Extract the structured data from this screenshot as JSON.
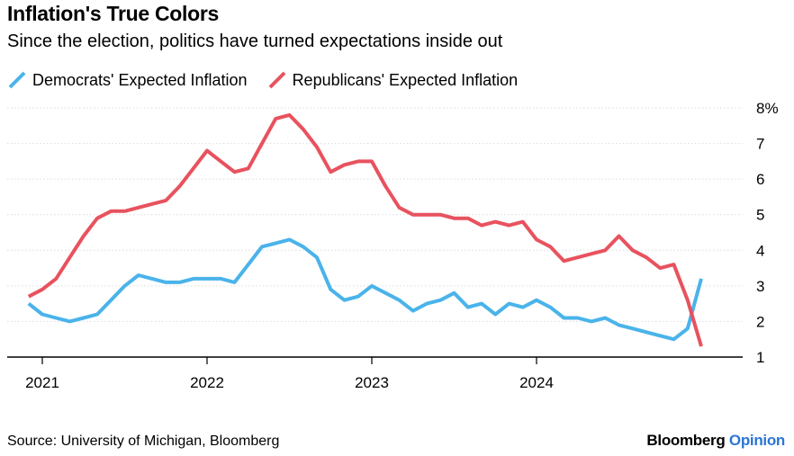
{
  "title": "Inflation's True Colors",
  "subtitle": "Since the election, politics have turned expectations inside out",
  "source": "Source: University of Michigan, Bloomberg",
  "brand": {
    "name": "Bloomberg",
    "suffix": "Opinion"
  },
  "colors": {
    "democrats": "#4ab3ea",
    "republicans": "#e8525e",
    "brand_accent": "#2b75d6"
  },
  "chart_data": {
    "type": "line",
    "title": "Inflation's True Colors",
    "subtitle": "Since the election, politics have turned expectations inside out",
    "xlabel": "",
    "ylabel": "",
    "x_ticks": [
      "2021",
      "2022",
      "2023",
      "2024"
    ],
    "y_ticks": [
      "1",
      "2",
      "3",
      "4",
      "5",
      "6",
      "7",
      "8%"
    ],
    "ylim": [
      1,
      8
    ],
    "grid": "horizontal",
    "legend_position": "top-left",
    "x_start": "2020-12",
    "x_end": "2025-01",
    "series": [
      {
        "name": "Democrats' Expected Inflation",
        "color": "#4ab3ea",
        "points": [
          [
            "2020-12",
            2.5
          ],
          [
            "2021-01",
            2.2
          ],
          [
            "2021-02",
            2.1
          ],
          [
            "2021-03",
            2.0
          ],
          [
            "2021-04",
            2.1
          ],
          [
            "2021-05",
            2.2
          ],
          [
            "2021-06",
            2.6
          ],
          [
            "2021-07",
            3.0
          ],
          [
            "2021-08",
            3.3
          ],
          [
            "2021-09",
            3.2
          ],
          [
            "2021-10",
            3.1
          ],
          [
            "2021-11",
            3.1
          ],
          [
            "2021-12",
            3.2
          ],
          [
            "2022-01",
            3.2
          ],
          [
            "2022-02",
            3.2
          ],
          [
            "2022-03",
            3.1
          ],
          [
            "2022-04",
            3.6
          ],
          [
            "2022-05",
            4.1
          ],
          [
            "2022-06",
            4.2
          ],
          [
            "2022-07",
            4.3
          ],
          [
            "2022-08",
            4.1
          ],
          [
            "2022-09",
            3.8
          ],
          [
            "2022-10",
            2.9
          ],
          [
            "2022-11",
            2.6
          ],
          [
            "2022-12",
            2.7
          ],
          [
            "2023-01",
            3.0
          ],
          [
            "2023-02",
            2.8
          ],
          [
            "2023-03",
            2.6
          ],
          [
            "2023-04",
            2.3
          ],
          [
            "2023-05",
            2.5
          ],
          [
            "2023-06",
            2.6
          ],
          [
            "2023-07",
            2.8
          ],
          [
            "2023-08",
            2.4
          ],
          [
            "2023-09",
            2.5
          ],
          [
            "2023-10",
            2.2
          ],
          [
            "2023-11",
            2.5
          ],
          [
            "2023-12",
            2.4
          ],
          [
            "2024-01",
            2.6
          ],
          [
            "2024-02",
            2.4
          ],
          [
            "2024-03",
            2.1
          ],
          [
            "2024-04",
            2.1
          ],
          [
            "2024-05",
            2.0
          ],
          [
            "2024-06",
            2.1
          ],
          [
            "2024-07",
            1.9
          ],
          [
            "2024-08",
            1.8
          ],
          [
            "2024-09",
            1.7
          ],
          [
            "2024-10",
            1.6
          ],
          [
            "2024-11",
            1.5
          ],
          [
            "2024-12",
            1.8
          ],
          [
            "2025-01",
            3.2
          ]
        ]
      },
      {
        "name": "Republicans' Expected Inflation",
        "color": "#e8525e",
        "points": [
          [
            "2020-12",
            2.7
          ],
          [
            "2021-01",
            2.9
          ],
          [
            "2021-02",
            3.2
          ],
          [
            "2021-03",
            3.8
          ],
          [
            "2021-04",
            4.4
          ],
          [
            "2021-05",
            4.9
          ],
          [
            "2021-06",
            5.1
          ],
          [
            "2021-07",
            5.1
          ],
          [
            "2021-08",
            5.2
          ],
          [
            "2021-09",
            5.3
          ],
          [
            "2021-10",
            5.4
          ],
          [
            "2021-11",
            5.8
          ],
          [
            "2021-12",
            6.3
          ],
          [
            "2022-01",
            6.8
          ],
          [
            "2022-02",
            6.5
          ],
          [
            "2022-03",
            6.2
          ],
          [
            "2022-04",
            6.3
          ],
          [
            "2022-05",
            7.0
          ],
          [
            "2022-06",
            7.7
          ],
          [
            "2022-07",
            7.8
          ],
          [
            "2022-08",
            7.4
          ],
          [
            "2022-09",
            6.9
          ],
          [
            "2022-10",
            6.2
          ],
          [
            "2022-11",
            6.4
          ],
          [
            "2022-12",
            6.5
          ],
          [
            "2023-01",
            6.5
          ],
          [
            "2023-02",
            5.8
          ],
          [
            "2023-03",
            5.2
          ],
          [
            "2023-04",
            5.0
          ],
          [
            "2023-05",
            5.0
          ],
          [
            "2023-06",
            5.0
          ],
          [
            "2023-07",
            4.9
          ],
          [
            "2023-08",
            4.9
          ],
          [
            "2023-09",
            4.7
          ],
          [
            "2023-10",
            4.8
          ],
          [
            "2023-11",
            4.7
          ],
          [
            "2023-12",
            4.8
          ],
          [
            "2024-01",
            4.3
          ],
          [
            "2024-02",
            4.1
          ],
          [
            "2024-03",
            3.7
          ],
          [
            "2024-04",
            3.8
          ],
          [
            "2024-05",
            3.9
          ],
          [
            "2024-06",
            4.0
          ],
          [
            "2024-07",
            4.4
          ],
          [
            "2024-08",
            4.0
          ],
          [
            "2024-09",
            3.8
          ],
          [
            "2024-10",
            3.5
          ],
          [
            "2024-11",
            3.6
          ],
          [
            "2024-12",
            2.6
          ],
          [
            "2025-01",
            1.3
          ]
        ]
      }
    ]
  }
}
